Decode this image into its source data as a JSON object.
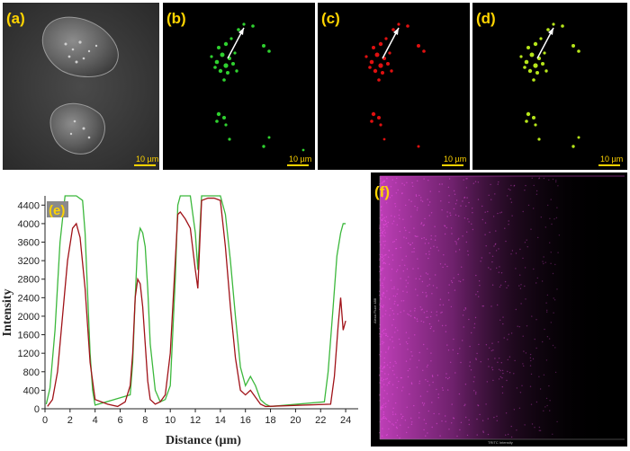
{
  "panels": {
    "a": {
      "label": "(a)",
      "scale": "10 µm",
      "type": "brightfield"
    },
    "b": {
      "label": "(b)",
      "scale": "10 µm",
      "color": "#2fd12f"
    },
    "c": {
      "label": "(c)",
      "scale": "10 µm",
      "color": "#e01010"
    },
    "d": {
      "label": "(d)",
      "scale": "10 µm",
      "color": "#b6e51a"
    },
    "e": {
      "label": "(e)"
    },
    "f": {
      "label": "(f)",
      "xlabel": "TRITC Intensity",
      "ylabel": "Alexa Fluor 488",
      "color": "#e04ad8"
    }
  },
  "chart_data": {
    "type": "line",
    "xlabel": "Distance (µm)",
    "ylabel": "Intensity",
    "xlim": [
      0,
      25
    ],
    "ylim": [
      0,
      4600
    ],
    "xticks": [
      0,
      2,
      4,
      6,
      8,
      10,
      12,
      14,
      16,
      18,
      20,
      22,
      24
    ],
    "yticks": [
      0,
      400,
      800,
      1200,
      1600,
      2000,
      2400,
      2800,
      3200,
      3600,
      4000,
      4400
    ],
    "grid": false,
    "series": [
      {
        "color": "#3cb83c",
        "x": [
          0.1,
          0.4,
          0.8,
          1.2,
          1.6,
          1.8,
          2.0,
          2.5,
          3.0,
          3.2,
          3.4,
          3.6,
          3.8,
          4.0,
          6.8,
          7.0,
          7.2,
          7.4,
          7.6,
          7.8,
          8.0,
          8.2,
          8.4,
          8.8,
          9.2,
          9.6,
          10.0,
          10.4,
          10.6,
          10.8,
          11.2,
          11.6,
          12.0,
          12.2,
          12.5,
          13.0,
          13.5,
          14.0,
          14.4,
          14.8,
          15.2,
          15.6,
          16.0,
          16.4,
          16.8,
          17.2,
          17.6,
          18.0,
          22.3,
          22.6,
          23.0,
          23.3,
          23.6,
          23.8,
          24.0
        ],
        "y": [
          100,
          450,
          1700,
          3600,
          4600,
          4600,
          4600,
          4600,
          4500,
          3800,
          2500,
          1200,
          400,
          80,
          300,
          1000,
          2400,
          3600,
          3900,
          3800,
          3500,
          2600,
          1400,
          400,
          150,
          200,
          500,
          2800,
          4400,
          4650,
          4650,
          4650,
          3800,
          3000,
          4600,
          4650,
          4650,
          4600,
          4200,
          3200,
          2000,
          900,
          500,
          700,
          500,
          200,
          100,
          50,
          150,
          800,
          2200,
          3300,
          3800,
          4000,
          4000
        ]
      },
      {
        "color": "#a01218",
        "x": [
          0.2,
          0.6,
          1.0,
          1.4,
          1.8,
          2.2,
          2.5,
          2.8,
          3.2,
          3.6,
          4.0,
          5.0,
          5.8,
          6.4,
          6.8,
          7.0,
          7.2,
          7.4,
          7.6,
          7.8,
          8.0,
          8.2,
          8.4,
          8.8,
          9.2,
          9.6,
          10.0,
          10.4,
          10.6,
          10.8,
          11.2,
          11.6,
          12.0,
          12.2,
          12.5,
          13.0,
          13.5,
          14.0,
          14.4,
          14.8,
          15.2,
          15.6,
          16.0,
          16.4,
          16.8,
          17.2,
          17.6,
          22.8,
          23.1,
          23.4,
          23.6,
          23.8,
          24.0
        ],
        "y": [
          50,
          200,
          800,
          2000,
          3200,
          3900,
          4000,
          3700,
          2600,
          1000,
          200,
          100,
          50,
          150,
          500,
          1200,
          2400,
          2800,
          2700,
          2200,
          1400,
          600,
          200,
          100,
          150,
          300,
          1200,
          3200,
          4200,
          4250,
          4100,
          3900,
          3000,
          2600,
          4500,
          4550,
          4550,
          4500,
          3500,
          2200,
          1100,
          400,
          300,
          400,
          250,
          100,
          50,
          100,
          700,
          1800,
          2400,
          1700,
          1900
        ]
      }
    ]
  }
}
